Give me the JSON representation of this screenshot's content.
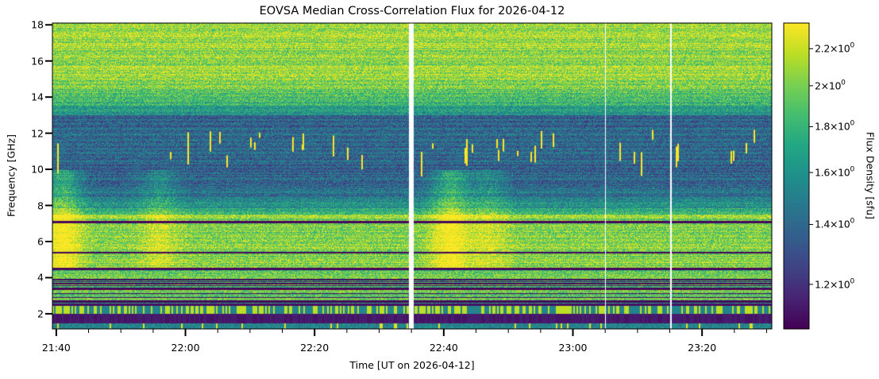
{
  "chart_data": {
    "type": "heatmap",
    "title": "EOVSA Median Cross-Correlation Flux for 2026-04-12",
    "xlabel": "Time [UT on 2026-04-12]",
    "ylabel": "Frequency [GHz]",
    "colorbar_label": "Flux Density [sfu]",
    "colormap": "viridis",
    "colorbar_scale": "log",
    "x_ticks": [
      "21:40",
      "22:00",
      "22:20",
      "22:40",
      "23:00",
      "23:20"
    ],
    "x_tick_minutes": [
      1300,
      1320,
      1340,
      1360,
      1380,
      1400
    ],
    "x_minor_tick_interval_min": 5,
    "xlim_minutes": [
      1299.4,
      1410.8
    ],
    "y_ticks": [
      "2",
      "4",
      "6",
      "8",
      "10",
      "12",
      "14",
      "16",
      "18"
    ],
    "y_tick_values": [
      2,
      4,
      6,
      8,
      10,
      12,
      14,
      16,
      18
    ],
    "ylim": [
      1.16,
      18.1
    ],
    "colorbar_ticks": [
      {
        "value": 2.2,
        "mantissa": "2.2",
        "exponent": "0"
      },
      {
        "value": 2.0,
        "mantissa": "2",
        "exponent": "0"
      },
      {
        "value": 1.8,
        "mantissa": "1.8",
        "exponent": "0"
      },
      {
        "value": 1.6,
        "mantissa": "1.6",
        "exponent": "0"
      },
      {
        "value": 1.4,
        "mantissa": "1.4",
        "exponent": "0"
      },
      {
        "value": 1.2,
        "mantissa": "1.2",
        "exponent": "0"
      }
    ],
    "clim": [
      1.07,
      2.35
    ],
    "data_gaps_minutes": [
      [
        1354.6,
        1355.3
      ],
      [
        1384.9,
        1385.1
      ],
      [
        1395.0,
        1395.2
      ]
    ],
    "features": {
      "bright_high_band_GHz": [
        15.0,
        18.0
      ],
      "dim_mid_band_GHz": [
        9.0,
        13.0
      ],
      "bright_low_band_GHz": [
        4.5,
        7.5
      ],
      "rfi_band_GHz": [
        1.5,
        2.6
      ],
      "dark_lines_GHz": [
        7.1,
        5.4,
        4.5,
        3.9,
        3.7,
        3.4,
        2.7
      ],
      "enhancements_minutes": [
        1301,
        1316,
        1361,
        1367
      ]
    },
    "grid": false,
    "legend": "colorbar-right"
  }
}
